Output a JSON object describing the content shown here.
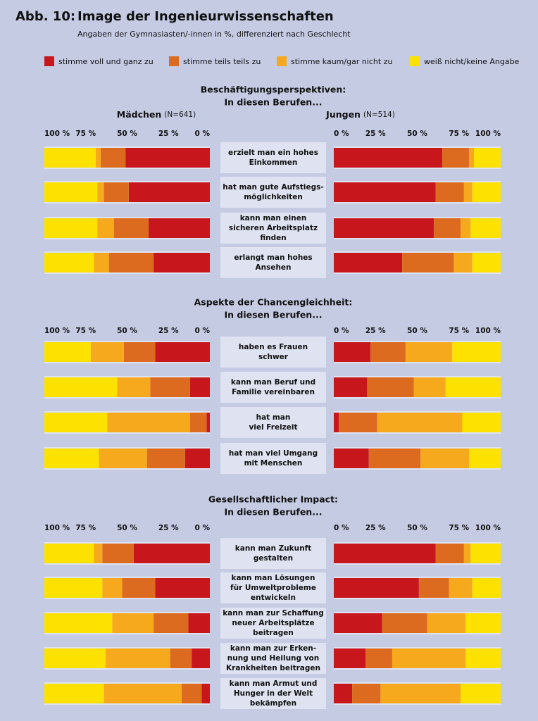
{
  "chart_data": {
    "type": "diverging_stacked_bar",
    "fig_label": "Abb. 10:",
    "title": "Image der Ingenieurwissenschaften",
    "subtitle": "Angaben der Gymnasiasten/-innen in %, differenziert nach Geschlecht",
    "series": [
      {
        "name": "stimme voll und ganz zu",
        "color": "#c8161d"
      },
      {
        "name": "stimme teils teils zu",
        "color": "#dc6b20"
      },
      {
        "name": "stimme kaum/gar nicht zu",
        "color": "#f6a91c"
      },
      {
        "name": "weiß nicht/keine Angabe",
        "color": "#fde100"
      }
    ],
    "panels": [
      {
        "name": "Mädchen",
        "n": "(N=641)"
      },
      {
        "name": "Jungen",
        "n": "(N=514)"
      }
    ],
    "xlim": [
      0,
      100
    ],
    "xticks": [
      {
        "value": 0,
        "label": "0 %"
      },
      {
        "value": 25,
        "label": "25 %"
      },
      {
        "value": 50,
        "label": "50 %"
      },
      {
        "value": 75,
        "label": "75 %"
      },
      {
        "value": 100,
        "label": "100 %"
      }
    ],
    "groups": [
      {
        "title": [
          "Beschäftigungsperspektiven:",
          "In diesen Berufen..."
        ],
        "rows": [
          {
            "label": [
              "erzielt man ein hohes",
              "Einkommen"
            ],
            "values": [
              [
                51,
                15,
                3,
                31
              ],
              [
                65,
                16,
                3,
                16
              ]
            ]
          },
          {
            "label": [
              "hat man gute Aufstiegs-",
              "möglichkeiten"
            ],
            "values": [
              [
                49,
                15,
                4,
                32
              ],
              [
                61,
                17,
                5,
                17
              ]
            ]
          },
          {
            "label": [
              "kann man einen",
              "sicheren Arbeitsplatz",
              "finden"
            ],
            "values": [
              [
                37,
                21,
                10,
                32
              ],
              [
                60,
                16,
                6,
                18
              ]
            ]
          },
          {
            "label": [
              "erlangt man hohes",
              "Ansehen"
            ],
            "values": [
              [
                34,
                27,
                9,
                30
              ],
              [
                41,
                31,
                11,
                17
              ]
            ]
          }
        ]
      },
      {
        "title": [
          "Aspekte der Chancengleichheit:",
          "In diesen Berufen..."
        ],
        "rows": [
          {
            "label": [
              "haben es Frauen",
              "schwer"
            ],
            "values": [
              [
                33,
                19,
                20,
                28
              ],
              [
                22,
                21,
                28,
                29
              ]
            ]
          },
          {
            "label": [
              "kann man Beruf und",
              "Familie vereinbaren"
            ],
            "values": [
              [
                12,
                24,
                20,
                44
              ],
              [
                20,
                28,
                19,
                33
              ]
            ]
          },
          {
            "label": [
              "hat man",
              "viel Freizeit"
            ],
            "values": [
              [
                2,
                10,
                50,
                38
              ],
              [
                3,
                23,
                51,
                23
              ]
            ]
          },
          {
            "label": [
              "hat man viel Umgang",
              "mit Menschen"
            ],
            "values": [
              [
                15,
                23,
                29,
                33
              ],
              [
                21,
                31,
                29,
                19
              ]
            ]
          }
        ]
      },
      {
        "title": [
          "Gesellschaftlicher Impact:",
          "In diesen Berufen..."
        ],
        "rows": [
          {
            "label": [
              "kann man Zukunft",
              "gestalten"
            ],
            "values": [
              [
                46,
                19,
                5,
                30
              ],
              [
                61,
                17,
                4,
                18
              ]
            ]
          },
          {
            "label": [
              "kann man Lösungen",
              "für Umweltprobleme",
              "entwickeln"
            ],
            "values": [
              [
                33,
                20,
                12,
                35
              ],
              [
                51,
                18,
                14,
                17
              ]
            ]
          },
          {
            "label": [
              "kann man zur Schaffung",
              "neuer Arbeitsplätze",
              "beitragen"
            ],
            "values": [
              [
                13,
                21,
                25,
                41
              ],
              [
                29,
                27,
                23,
                21
              ]
            ]
          },
          {
            "label": [
              "kann man zur Erken-",
              "nung und Heilung von",
              "Krankheiten beitragen"
            ],
            "values": [
              [
                11,
                13,
                39,
                37
              ],
              [
                19,
                16,
                44,
                21
              ]
            ]
          },
          {
            "label": [
              "kann man Armut und",
              "Hunger in der Welt",
              "bekämpfen"
            ],
            "values": [
              [
                5,
                12,
                47,
                36
              ],
              [
                11,
                17,
                48,
                24
              ]
            ]
          }
        ]
      }
    ]
  }
}
